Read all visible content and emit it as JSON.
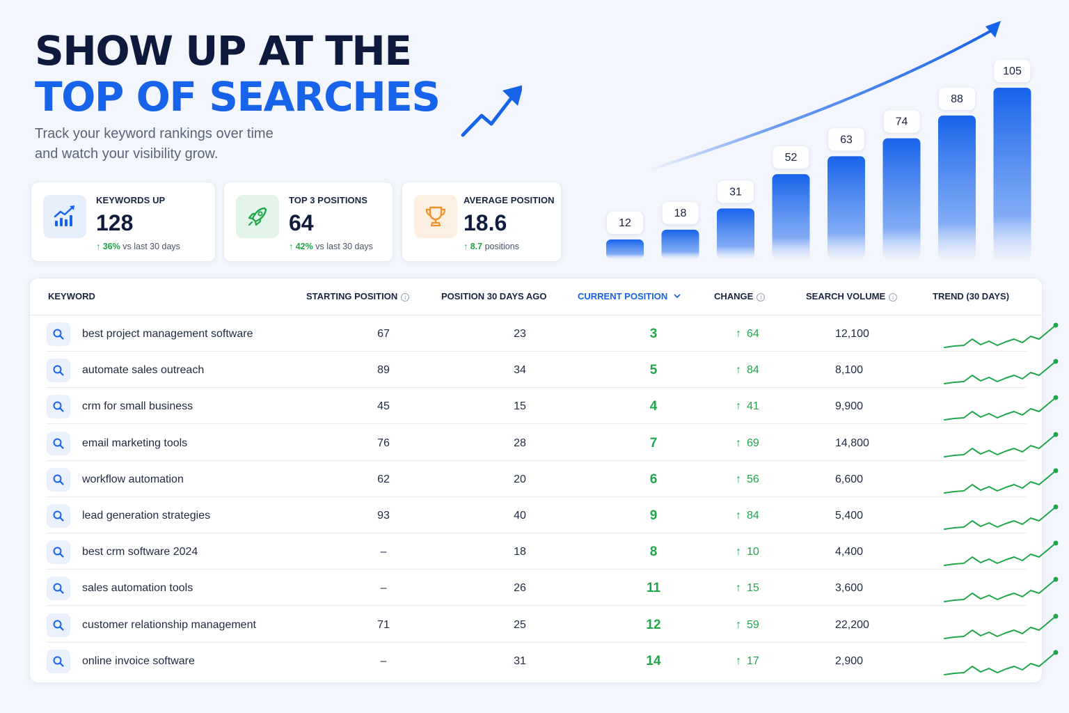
{
  "hero": {
    "title_line1": "SHOW UP AT THE",
    "title_line2": "TOP OF SEARCHES",
    "subtitle_line1": "Track your keyword rankings over time",
    "subtitle_line2": "and watch your visibility grow."
  },
  "stats": [
    {
      "label": "KEYWORDS UP",
      "value": "128",
      "delta_value": "36%",
      "delta_text": "vs last 30 days",
      "icon": "chart-up-icon"
    },
    {
      "label": "TOP 3 POSITIONS",
      "value": "64",
      "delta_value": "42%",
      "delta_text": "vs last 30 days",
      "icon": "rocket-icon"
    },
    {
      "label": "AVERAGE POSITION",
      "value": "18.6",
      "delta_value": "8.7",
      "delta_text": "positions",
      "icon": "trophy-icon"
    }
  ],
  "colors": {
    "accent_blue": "#1763ea",
    "positive_green": "#1fa64b",
    "dark_text": "#0d1a3c"
  },
  "chart_data": {
    "type": "bar",
    "categories": [
      "",
      "",
      "",
      "",
      "",
      "",
      "",
      ""
    ],
    "values": [
      12,
      18,
      31,
      52,
      63,
      74,
      88,
      105
    ],
    "data_labels": [
      "12",
      "18",
      "31",
      "52",
      "63",
      "74",
      "88",
      "105"
    ],
    "title": "",
    "xlabel": "",
    "ylabel": "",
    "trend_arrow": true
  },
  "table": {
    "headers": {
      "keyword": "KEYWORD",
      "start": "STARTING POSITION",
      "ago": "POSITION 30 DAYS AGO",
      "current": "CURRENT POSITION",
      "change": "CHANGE",
      "volume": "SEARCH VOLUME",
      "trend": "TREND (30 DAYS)"
    },
    "rows": [
      {
        "keyword": "best project management software",
        "start": "67",
        "ago": "23",
        "current": "3",
        "change": "64",
        "volume": "12,100"
      },
      {
        "keyword": "automate sales outreach",
        "start": "89",
        "ago": "34",
        "current": "5",
        "change": "84",
        "volume": "8,100"
      },
      {
        "keyword": "crm for small business",
        "start": "45",
        "ago": "15",
        "current": "4",
        "change": "41",
        "volume": "9,900"
      },
      {
        "keyword": "email marketing tools",
        "start": "76",
        "ago": "28",
        "current": "7",
        "change": "69",
        "volume": "14,800"
      },
      {
        "keyword": "workflow automation",
        "start": "62",
        "ago": "20",
        "current": "6",
        "change": "56",
        "volume": "6,600"
      },
      {
        "keyword": "lead generation strategies",
        "start": "93",
        "ago": "40",
        "current": "9",
        "change": "84",
        "volume": "5,400"
      },
      {
        "keyword": "best crm software 2024",
        "start": "–",
        "ago": "18",
        "current": "8",
        "change": "10",
        "volume": "4,400"
      },
      {
        "keyword": "sales automation tools",
        "start": "–",
        "ago": "26",
        "current": "11",
        "change": "15",
        "volume": "3,600"
      },
      {
        "keyword": "customer relationship management",
        "start": "71",
        "ago": "25",
        "current": "12",
        "change": "59",
        "volume": "22,200"
      },
      {
        "keyword": "online invoice software",
        "start": "–",
        "ago": "31",
        "current": "14",
        "change": "17",
        "volume": "2,900"
      }
    ]
  }
}
